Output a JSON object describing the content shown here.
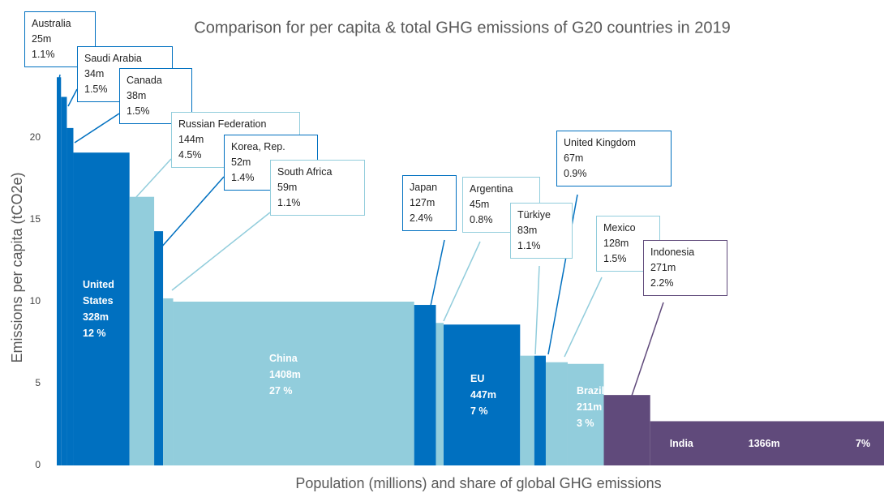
{
  "chart_data": {
    "type": "variable-width-bar",
    "title": "Comparison for per capita & total GHG emissions of G20 countries in 2019",
    "x_label": "Population (millions) and share of global GHG emissions",
    "y_label": "Emissions per capita (tCO2e)",
    "categories": [
      "Australia",
      "Saudi Arabia",
      "Canada",
      "United States",
      "Russian Federation",
      "Korea, Rep.",
      "South Africa",
      "China",
      "Japan",
      "Argentina",
      "EU",
      "Türkiye",
      "United Kingdom",
      "Mexico",
      "Brazil",
      "Indonesia",
      "India"
    ],
    "values": [
      23.7,
      22.5,
      20.6,
      19.1,
      16.4,
      14.3,
      10.2,
      10.0,
      9.8,
      8.7,
      8.6,
      6.7,
      6.7,
      6.3,
      6.2,
      4.3,
      2.7
    ],
    "populations": [
      25,
      34,
      38,
      328,
      144,
      52,
      59,
      1408,
      127,
      45,
      447,
      83,
      67,
      128,
      211,
      271,
      1366
    ],
    "population_labels": [
      "25m",
      "34m",
      "38m",
      "328m",
      "144m",
      "52m",
      "59m",
      "1408m",
      "127m",
      "45m",
      "447m",
      "83m",
      "67m",
      "128m",
      "211m",
      "271m",
      "1366m"
    ],
    "shares": [
      1.1,
      1.5,
      1.5,
      12,
      4.5,
      1.4,
      1.1,
      27,
      2.4,
      0.8,
      7,
      1.1,
      0.9,
      1.5,
      3,
      2.2,
      7
    ],
    "share_labels": [
      "1.1%",
      "1.5%",
      "1.5%",
      "12 %",
      "4.5%",
      "1.4%",
      "1.1%",
      "27 %",
      "2.4%",
      "0.8%",
      "7 %",
      "1.1%",
      "0.9%",
      "1.5%",
      "3 %",
      "2.2%",
      "7%"
    ],
    "colors": [
      "#0070c0",
      "#0070c0",
      "#0070c0",
      "#0070c0",
      "#92cddc",
      "#0070c0",
      "#92cddc",
      "#92cddc",
      "#0070c0",
      "#92cddc",
      "#0070c0",
      "#92cddc",
      "#0070c0",
      "#92cddc",
      "#92cddc",
      "#604a7b",
      "#604a7b"
    ],
    "ylim": [
      0,
      25
    ],
    "yticks": [
      0,
      5,
      10,
      15,
      20
    ]
  }
}
